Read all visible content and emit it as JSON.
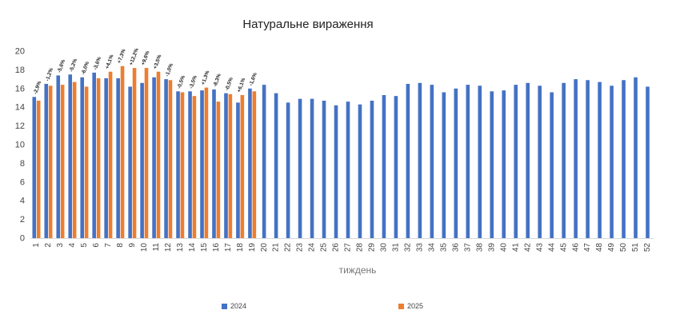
{
  "chart_data": {
    "type": "bar",
    "title": "Натуральне вираження",
    "xlabel": "тиждень",
    "ylabel": "",
    "ylim": [
      0,
      20
    ],
    "yticks": [
      0,
      2,
      4,
      6,
      8,
      10,
      12,
      14,
      16,
      18,
      20
    ],
    "grid": false,
    "legend_position": "bottom",
    "categories": [
      "1",
      "2",
      "3",
      "4",
      "5",
      "6",
      "7",
      "8",
      "9",
      "10",
      "11",
      "12",
      "13",
      "14",
      "15",
      "16",
      "17",
      "18",
      "19",
      "20",
      "21",
      "22",
      "23",
      "24",
      "25",
      "26",
      "27",
      "28",
      "29",
      "30",
      "31",
      "32",
      "33",
      "34",
      "35",
      "36",
      "37",
      "38",
      "39",
      "40",
      "41",
      "42",
      "43",
      "44",
      "45",
      "46",
      "47",
      "48",
      "49",
      "50",
      "51",
      "52"
    ],
    "series": [
      {
        "name": "2024",
        "color": "#4472C4",
        "values": [
          15.1,
          16.5,
          17.4,
          17.5,
          17.2,
          17.7,
          17.1,
          17.1,
          16.2,
          16.6,
          17.2,
          17.0,
          15.7,
          15.7,
          15.8,
          15.9,
          15.5,
          14.5,
          16.0,
          16.4,
          15.5,
          14.5,
          14.9,
          14.9,
          14.7,
          14.2,
          14.6,
          14.3,
          14.7,
          15.3,
          15.2,
          16.5,
          16.6,
          16.4,
          15.6,
          16.0,
          16.4,
          16.3,
          15.7,
          15.8,
          16.4,
          16.6,
          16.3,
          15.6,
          16.6,
          17.0,
          16.9,
          16.7,
          16.3,
          16.9,
          17.2,
          16.2
        ]
      },
      {
        "name": "2025",
        "color": "#ED7D31",
        "values": [
          14.7,
          16.3,
          16.4,
          16.7,
          16.2,
          17.1,
          17.8,
          18.4,
          18.2,
          18.2,
          17.8,
          16.9,
          15.6,
          15.2,
          16.1,
          14.6,
          15.4,
          15.3,
          15.7,
          null,
          null,
          null,
          null,
          null,
          null,
          null,
          null,
          null,
          null,
          null,
          null,
          null,
          null,
          null,
          null,
          null,
          null,
          null,
          null,
          null,
          null,
          null,
          null,
          null,
          null,
          null,
          null,
          null,
          null,
          null,
          null,
          null
        ]
      }
    ],
    "data_labels": [
      "-2,9%",
      "-1,2%",
      "-5,6%",
      "-5,2%",
      "-6,0%",
      "-3,6%",
      "+4,1%",
      "+7,3%",
      "+12,2%",
      "+9,6%",
      "+3,5%",
      "-1,0%",
      "-0,5%",
      "-3,5%",
      "+1,3%",
      "-8,3%",
      "-0,5%",
      "+6,1%",
      "-1,6%"
    ]
  }
}
